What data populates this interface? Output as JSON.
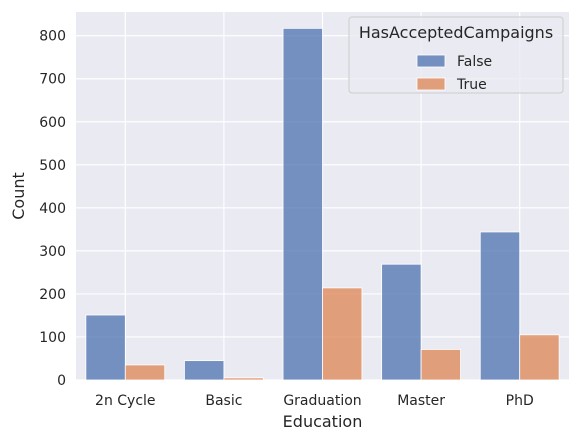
{
  "chart_data": {
    "type": "bar",
    "title": "",
    "xlabel": "Education",
    "ylabel": "Count",
    "categories": [
      "2n Cycle",
      "Basic",
      "Graduation",
      "Master",
      "PhD"
    ],
    "series": [
      {
        "name": "False",
        "values": [
          151,
          45,
          817,
          269,
          344
        ],
        "color": "#4c72b0"
      },
      {
        "name": "True",
        "values": [
          35,
          5,
          214,
          71,
          105
        ],
        "color": "#dd8452"
      }
    ],
    "ylim": [
      0,
      855
    ],
    "yticks": [
      0,
      100,
      200,
      300,
      400,
      500,
      600,
      700,
      800
    ],
    "grid": true,
    "legend": {
      "title": "HasAcceptedCampaigns",
      "placement": "top-right"
    },
    "colors": {
      "background": "#eaeaf2",
      "grid": "#ffffff"
    }
  }
}
